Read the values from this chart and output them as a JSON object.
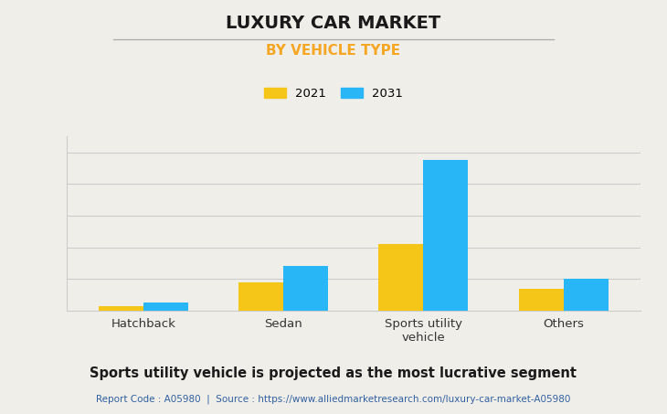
{
  "title": "LUXURY CAR MARKET",
  "subtitle": "BY VEHICLE TYPE",
  "categories": [
    "Hatchback",
    "Sedan",
    "Sports utility\nvehicle",
    "Others"
  ],
  "values_2021": [
    3,
    18,
    42,
    14
  ],
  "values_2031": [
    5,
    28,
    95,
    20
  ],
  "color_2021": "#F5C518",
  "color_2031": "#29B6F6",
  "legend_labels": [
    "2021",
    "2031"
  ],
  "background_color": "#F0EEE9",
  "title_fontsize": 14,
  "subtitle_fontsize": 11,
  "subtitle_color": "#F5A623",
  "footer_text": "Sports utility vehicle is projected as the most lucrative segment",
  "report_text": "Report Code : A05980  |  Source : https://www.alliedmarketresearch.com/luxury-car-market-A05980",
  "report_color": "#3060A0",
  "grid_color": "#CCCCCC",
  "bar_width": 0.32,
  "ylim_max": 110
}
